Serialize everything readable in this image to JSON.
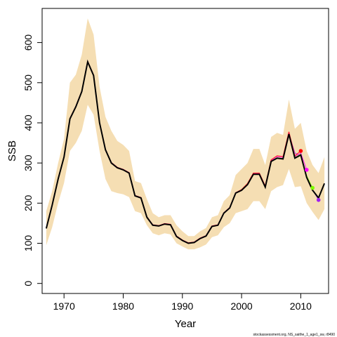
{
  "chart_data": {
    "type": "line",
    "title": "",
    "xlabel": "Year",
    "ylabel": "SSB",
    "xlim": [
      1966.3,
      2014.7
    ],
    "ylim": [
      -25,
      685
    ],
    "x_ticks": [
      1970,
      1980,
      1990,
      2000,
      2010
    ],
    "y_ticks": [
      0,
      100,
      200,
      300,
      400,
      500,
      600
    ],
    "grid": false,
    "credit": "stockassessment.org, NS_saithe_1_age1_sw, r8490",
    "colors": {
      "band": "#f5deb3",
      "estimate": "#000000",
      "retro": [
        "#ff0000",
        "#ff00ff",
        "#7fff00",
        "#a020f0"
      ]
    },
    "band": {
      "x": [
        1967,
        1968,
        1969,
        1970,
        1971,
        1972,
        1973,
        1974,
        1975,
        1976,
        1977,
        1978,
        1979,
        1980,
        1981,
        1982,
        1983,
        1984,
        1985,
        1986,
        1987,
        1988,
        1989,
        1990,
        1991,
        1992,
        1993,
        1994,
        1995,
        1996,
        1997,
        1998,
        1999,
        2000,
        2001,
        2002,
        2003,
        2004,
        2005,
        2006,
        2007,
        2008,
        2009,
        2010,
        2011,
        2012,
        2013,
        2014
      ],
      "lower": [
        95,
        140,
        200,
        250,
        330,
        350,
        380,
        445,
        420,
        330,
        260,
        230,
        225,
        222,
        215,
        180,
        175,
        145,
        125,
        120,
        125,
        122,
        100,
        92,
        85,
        85,
        90,
        97,
        115,
        120,
        140,
        150,
        175,
        180,
        185,
        205,
        205,
        185,
        230,
        240,
        245,
        285,
        240,
        242,
        200,
        178,
        158,
        185
      ],
      "upper": [
        180,
        230,
        300,
        360,
        500,
        520,
        570,
        660,
        620,
        490,
        415,
        380,
        355,
        345,
        330,
        255,
        250,
        210,
        175,
        165,
        170,
        170,
        145,
        130,
        118,
        118,
        130,
        138,
        165,
        170,
        205,
        220,
        270,
        285,
        300,
        335,
        335,
        295,
        365,
        375,
        370,
        458,
        385,
        400,
        330,
        295,
        275,
        315
      ]
    },
    "series": [
      {
        "x": [
          1967,
          1968,
          1969,
          1970,
          1971,
          1972,
          1973,
          1974,
          1975,
          1976,
          1977,
          1978,
          1979,
          1980,
          1981,
          1982,
          1983,
          1984,
          1985,
          1986,
          1987,
          1988,
          1989,
          1990,
          1991,
          1992,
          1993,
          1994,
          1995,
          1996,
          1997,
          1998,
          1999,
          2000,
          2001,
          2002,
          2003,
          2004,
          2005,
          2006,
          2007,
          2008,
          2009,
          2010,
          2011,
          2012,
          2013,
          2014
        ],
        "values": [
          137,
          195,
          260,
          315,
          410,
          440,
          478,
          552,
          518,
          400,
          333,
          300,
          288,
          283,
          275,
          218,
          213,
          165,
          145,
          143,
          148,
          146,
          117,
          107,
          100,
          102,
          112,
          118,
          142,
          145,
          175,
          188,
          225,
          232,
          246,
          272,
          272,
          240,
          304,
          312,
          310,
          372,
          312,
          320,
          264,
          232,
          213,
          249
        ]
      },
      {
        "x": [
          1967,
          1968,
          1969,
          1970,
          1971,
          1972,
          1973,
          1974,
          1975,
          1976,
          1977,
          1978,
          1979,
          1980,
          1981,
          1982,
          1983,
          1984,
          1985,
          1986,
          1987,
          1988,
          1989,
          1990,
          1991,
          1992,
          1993,
          1994,
          1995,
          1996,
          1997,
          1998,
          1999,
          2000,
          2001,
          2002,
          2003,
          2004,
          2005,
          2006,
          2007,
          2008,
          2009,
          2010
        ],
        "values": [
          138,
          196,
          261,
          316,
          411,
          441,
          479,
          553,
          519,
          401,
          334,
          301,
          289,
          284,
          276,
          219,
          214,
          166,
          146,
          144,
          149,
          147,
          118,
          108,
          101,
          103,
          113,
          119,
          143,
          146,
          176,
          189,
          226,
          234,
          249,
          275,
          275,
          243,
          308,
          318,
          316,
          378,
          318,
          330
        ]
      },
      {
        "x": [
          1967,
          1968,
          1969,
          1970,
          1971,
          1972,
          1973,
          1974,
          1975,
          1976,
          1977,
          1978,
          1979,
          1980,
          1981,
          1982,
          1983,
          1984,
          1985,
          1986,
          1987,
          1988,
          1989,
          1990,
          1991,
          1992,
          1993,
          1994,
          1995,
          1996,
          1997,
          1998,
          1999,
          2000,
          2001,
          2002,
          2003,
          2004,
          2005,
          2006,
          2007,
          2008,
          2009,
          2010,
          2011
        ],
        "values": [
          138,
          196,
          261,
          316,
          411,
          441,
          479,
          553,
          519,
          401,
          334,
          301,
          289,
          284,
          276,
          219,
          214,
          166,
          146,
          144,
          149,
          147,
          118,
          108,
          101,
          103,
          113,
          119,
          143,
          146,
          176,
          189,
          226,
          233,
          247,
          274,
          274,
          242,
          307,
          316,
          314,
          376,
          316,
          325,
          283
        ]
      },
      {
        "x": [
          1967,
          1968,
          1969,
          1970,
          1971,
          1972,
          1973,
          1974,
          1975,
          1976,
          1977,
          1978,
          1979,
          1980,
          1981,
          1982,
          1983,
          1984,
          1985,
          1986,
          1987,
          1988,
          1989,
          1990,
          1991,
          1992,
          1993,
          1994,
          1995,
          1996,
          1997,
          1998,
          1999,
          2000,
          2001,
          2002,
          2003,
          2004,
          2005,
          2006,
          2007,
          2008,
          2009,
          2010,
          2011,
          2012
        ],
        "values": [
          137,
          195,
          260,
          315,
          410,
          440,
          478,
          552,
          518,
          400,
          333,
          300,
          288,
          283,
          275,
          218,
          213,
          165,
          145,
          143,
          148,
          146,
          117,
          107,
          100,
          102,
          112,
          118,
          142,
          145,
          175,
          188,
          225,
          232,
          246,
          272,
          272,
          240,
          305,
          313,
          311,
          374,
          314,
          322,
          268,
          238
        ]
      },
      {
        "x": [
          1967,
          1968,
          1969,
          1970,
          1971,
          1972,
          1973,
          1974,
          1975,
          1976,
          1977,
          1978,
          1979,
          1980,
          1981,
          1982,
          1983,
          1984,
          1985,
          1986,
          1987,
          1988,
          1989,
          1990,
          1991,
          1992,
          1993,
          1994,
          1995,
          1996,
          1997,
          1998,
          1999,
          2000,
          2001,
          2002,
          2003,
          2004,
          2005,
          2006,
          2007,
          2008,
          2009,
          2010,
          2011,
          2012,
          2013
        ],
        "values": [
          137,
          195,
          260,
          315,
          410,
          440,
          478,
          552,
          518,
          400,
          333,
          300,
          288,
          283,
          275,
          218,
          213,
          165,
          145,
          143,
          148,
          146,
          117,
          107,
          100,
          102,
          112,
          118,
          142,
          145,
          175,
          188,
          225,
          232,
          246,
          272,
          272,
          240,
          304,
          312,
          310,
          372,
          325,
          318,
          266,
          234,
          208
        ]
      }
    ]
  }
}
